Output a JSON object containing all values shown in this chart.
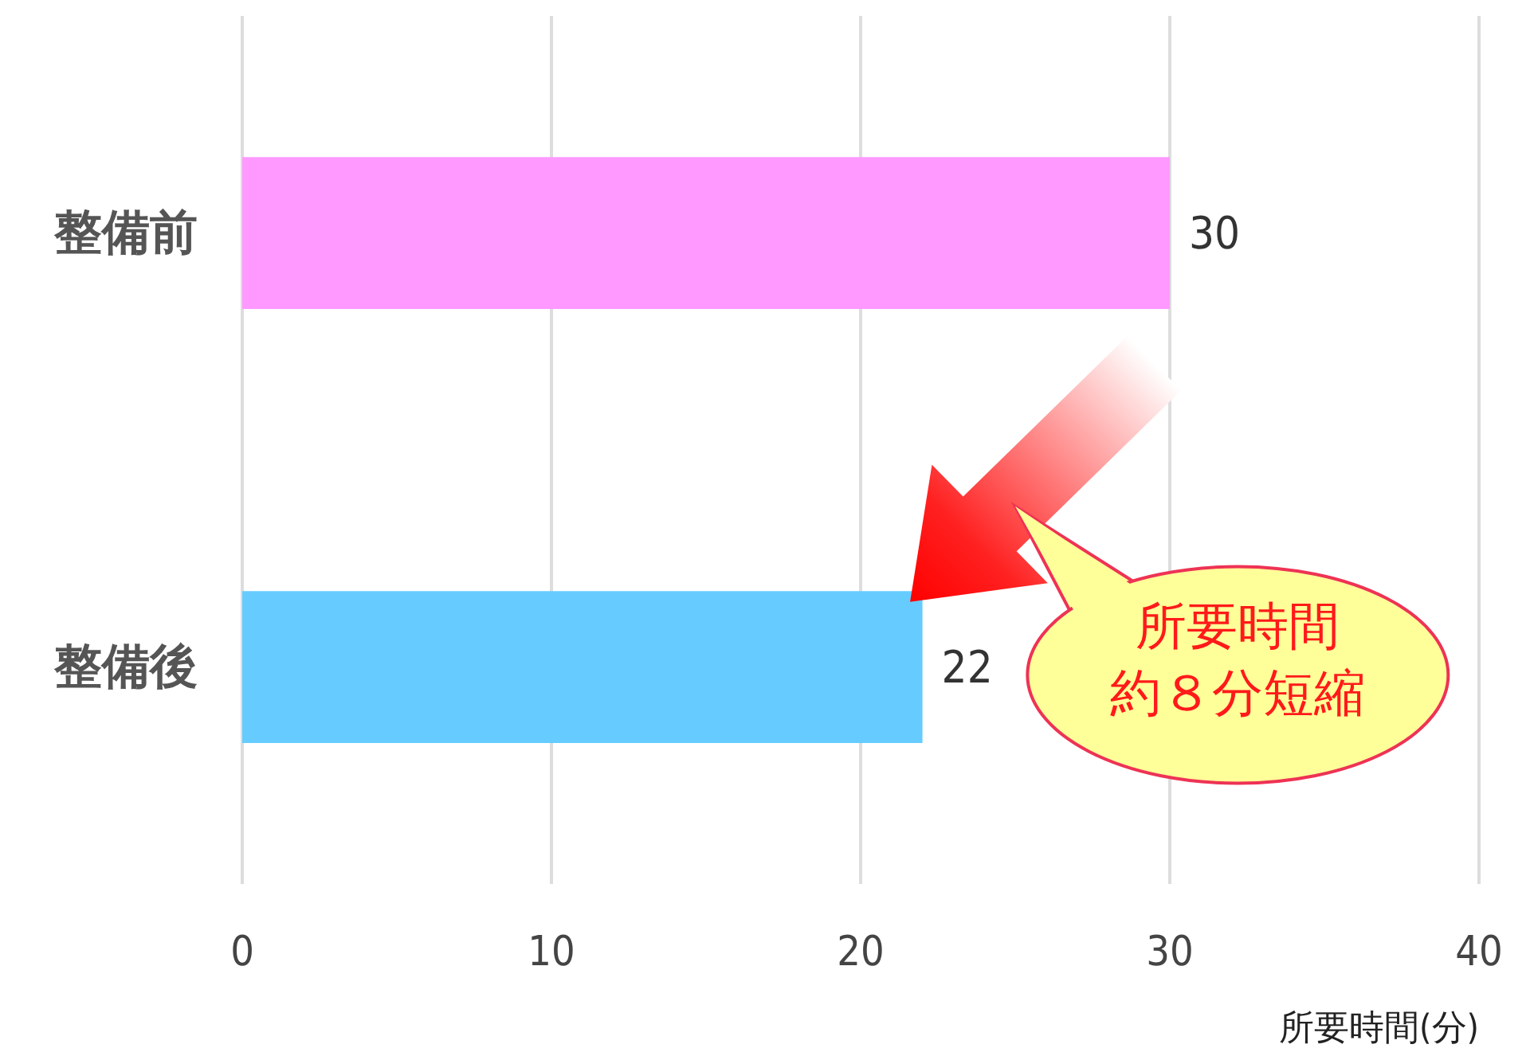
{
  "chart_data": {
    "type": "bar",
    "orientation": "horizontal",
    "categories": [
      "整備前",
      "整備後"
    ],
    "values": [
      30,
      22
    ],
    "colors": [
      "#ff99ff",
      "#66ccff"
    ],
    "xlim": [
      0,
      40
    ],
    "xticks": [
      0,
      10,
      20,
      30,
      40
    ],
    "xlabel": "所要時間(分)",
    "grid": "x",
    "data_labels": true,
    "annotations": [
      "所要時間",
      "約８分短縮"
    ]
  }
}
